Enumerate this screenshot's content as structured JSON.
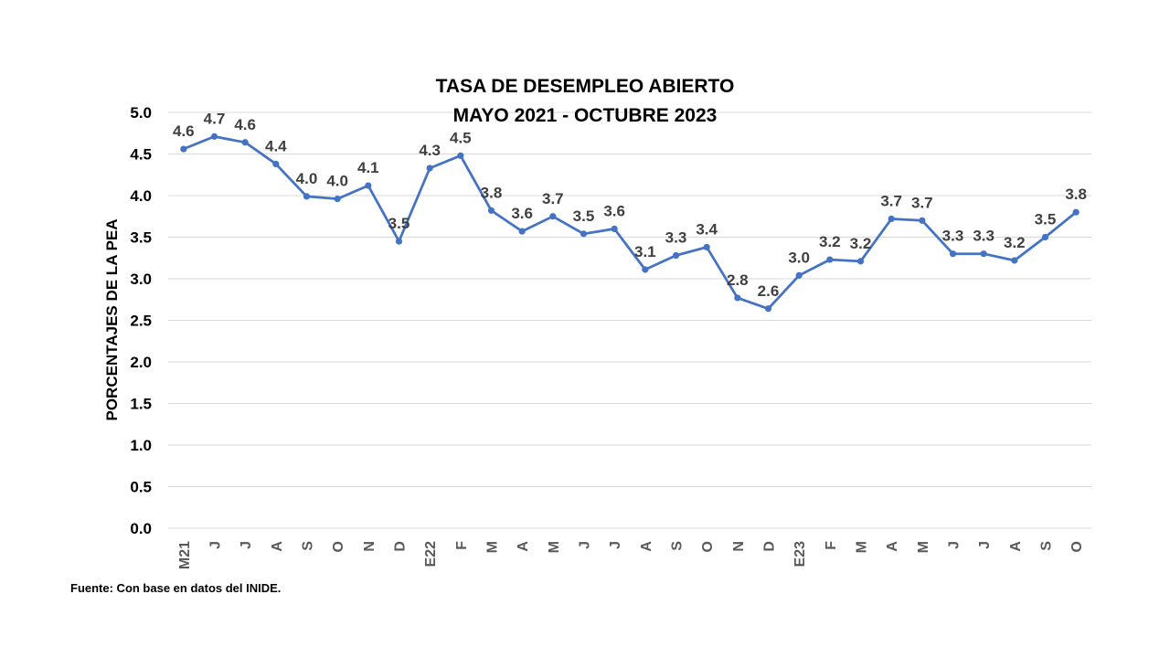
{
  "chart_data": {
    "type": "line",
    "title": "TASA DE DESEMPLEO ABIERTO",
    "subtitle": "MAYO 2021 - OCTUBRE 2023",
    "ylabel": "PORCENTAJES  DE LA PEA",
    "xlabel": "",
    "ylim": [
      0,
      5
    ],
    "ytick_labels": [
      "0.0",
      "0.5",
      "1.0",
      "1.5",
      "2.0",
      "2.5",
      "3.0",
      "3.5",
      "4.0",
      "4.5",
      "5.0"
    ],
    "grid": true,
    "legend": "none",
    "color": "#4472c4",
    "categories": [
      "M21",
      "J",
      "J",
      "A",
      "S",
      "O",
      "N",
      "D",
      "E22",
      "F",
      "M",
      "A",
      "M",
      "J",
      "J",
      "A",
      "S",
      "O",
      "N",
      "D",
      "E23",
      "F",
      "M",
      "A",
      "M",
      "J",
      "J",
      "A",
      "S",
      "O"
    ],
    "values": [
      4.56,
      4.71,
      4.64,
      4.38,
      3.99,
      3.96,
      4.12,
      3.45,
      4.33,
      4.48,
      3.82,
      3.57,
      3.75,
      3.54,
      3.6,
      3.11,
      3.28,
      3.38,
      2.77,
      2.64,
      3.04,
      3.23,
      3.21,
      3.72,
      3.7,
      3.3,
      3.3,
      3.22,
      3.5,
      3.8
    ],
    "data_labels": [
      "4.6",
      "4.7",
      "4.6",
      "4.4",
      "4.0",
      "4.0",
      "4.1",
      "3.5",
      "4.3",
      "4.5",
      "3.8",
      "3.6",
      "3.7",
      "3.5",
      "3.6",
      "3.1",
      "3.3",
      "3.4",
      "2.8",
      "2.6",
      "3.0",
      "3.2",
      "3.2",
      "3.7",
      "3.7",
      "3.3",
      "3.3",
      "3.2",
      "3.5",
      "3.8"
    ]
  },
  "source_note": "Fuente: Con base en datos del INIDE."
}
